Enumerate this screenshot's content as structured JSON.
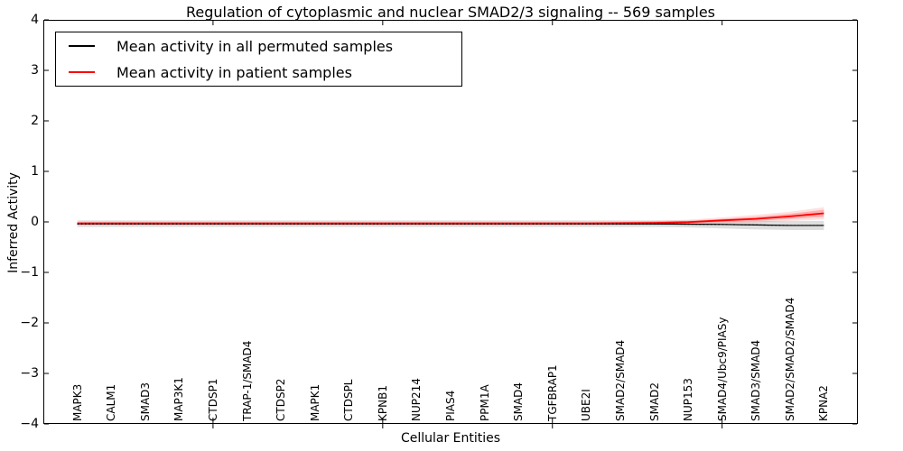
{
  "figure": {
    "title": "Regulation of cytoplasmic and nuclear SMAD2/3 signaling -- 569 samples",
    "xlabel": "Cellular Entities",
    "ylabel": "Inferred Activity"
  },
  "legend": {
    "items": [
      {
        "label": "Mean activity in all permuted samples",
        "color": "#000000"
      },
      {
        "label": "Mean activity in patient samples",
        "color": "#ff0000"
      }
    ]
  },
  "chart_data": {
    "type": "line",
    "title": "Regulation of cytoplasmic and nuclear SMAD2/3 signaling -- 569 samples",
    "xlabel": "Cellular Entities",
    "ylabel": "Inferred Activity",
    "grid": false,
    "legend_position": "upper left",
    "xlim": [
      -1,
      23
    ],
    "ylim": [
      -4,
      4
    ],
    "yticks": [
      4,
      3,
      2,
      1,
      0,
      -1,
      -2,
      -3,
      -4
    ],
    "xtick_marks_at": [
      4,
      9,
      14,
      19
    ],
    "categories": [
      "MAPK3",
      "CALM1",
      "SMAD3",
      "MAP3K1",
      "CTDSP1",
      "TRAP-1/SMAD4",
      "CTDSP2",
      "MAPK1",
      "CTDSPL",
      "KPNB1",
      "NUP214",
      "PIAS4",
      "PPM1A",
      "SMAD4",
      "TGFBRAP1",
      "UBE2I",
      "SMAD2/SMAD4",
      "SMAD2",
      "NUP153",
      "SMAD4/Ubc9/PIASy",
      "SMAD3/SMAD4",
      "SMAD2/SMAD2/SMAD4",
      "KPNA2"
    ],
    "series": [
      {
        "name": "Mean activity in all permuted samples",
        "color": "#000000",
        "linewidth": 1.2,
        "linestyle": "solid-with-dotted-overlay",
        "values": [
          -0.04,
          -0.04,
          -0.04,
          -0.04,
          -0.04,
          -0.04,
          -0.04,
          -0.04,
          -0.04,
          -0.04,
          -0.04,
          -0.04,
          -0.04,
          -0.04,
          -0.04,
          -0.04,
          -0.04,
          -0.04,
          -0.045,
          -0.05,
          -0.06,
          -0.07,
          -0.07
        ],
        "bands": [
          {
            "fill": "rgba(0,0,0,0.13)",
            "upper": [
              0.03,
              0.03,
              0.03,
              0.03,
              0.03,
              0.03,
              0.03,
              0.03,
              0.03,
              0.03,
              0.03,
              0.03,
              0.03,
              0.03,
              0.03,
              0.03,
              0.03,
              0.03,
              0.025,
              0.02,
              0.02,
              0.02,
              0.02
            ],
            "lower": [
              -0.1,
              -0.1,
              -0.1,
              -0.1,
              -0.1,
              -0.1,
              -0.1,
              -0.1,
              -0.1,
              -0.1,
              -0.1,
              -0.1,
              -0.1,
              -0.1,
              -0.1,
              -0.1,
              -0.1,
              -0.1,
              -0.11,
              -0.13,
              -0.15,
              -0.16,
              -0.16
            ]
          }
        ]
      },
      {
        "name": "Mean activity in patient samples",
        "color": "#ff0000",
        "linewidth": 1.8,
        "linestyle": "solid",
        "values": [
          -0.03,
          -0.03,
          -0.03,
          -0.03,
          -0.03,
          -0.03,
          -0.03,
          -0.03,
          -0.03,
          -0.03,
          -0.03,
          -0.03,
          -0.03,
          -0.03,
          -0.03,
          -0.03,
          -0.025,
          -0.02,
          -0.005,
          0.03,
          0.06,
          0.11,
          0.17
        ],
        "bands": [
          {
            "fill": "rgba(255,0,0,0.12)",
            "upper": [
              0.0,
              0.0,
              0.0,
              0.0,
              0.0,
              0.0,
              0.0,
              0.0,
              0.0,
              0.0,
              0.0,
              0.0,
              0.0,
              0.0,
              0.0,
              0.0,
              0.005,
              0.02,
              0.045,
              0.09,
              0.14,
              0.2,
              0.29
            ],
            "lower": [
              -0.06,
              -0.06,
              -0.06,
              -0.06,
              -0.06,
              -0.06,
              -0.06,
              -0.06,
              -0.06,
              -0.06,
              -0.06,
              -0.06,
              -0.06,
              -0.06,
              -0.06,
              -0.06,
              -0.06,
              -0.06,
              -0.055,
              -0.03,
              -0.01,
              0.02,
              0.05
            ]
          },
          {
            "fill": "rgba(255,0,0,0.22)",
            "upper": [
              -0.012,
              -0.012,
              -0.012,
              -0.012,
              -0.012,
              -0.012,
              -0.012,
              -0.012,
              -0.012,
              -0.012,
              -0.012,
              -0.012,
              -0.012,
              -0.012,
              -0.012,
              -0.012,
              -0.005,
              0.005,
              0.02,
              0.06,
              0.1,
              0.16,
              0.24
            ],
            "lower": [
              -0.048,
              -0.048,
              -0.048,
              -0.048,
              -0.048,
              -0.048,
              -0.048,
              -0.048,
              -0.048,
              -0.048,
              -0.048,
              -0.048,
              -0.048,
              -0.048,
              -0.048,
              -0.048,
              -0.045,
              -0.04,
              -0.03,
              0.0,
              0.02,
              0.06,
              0.1
            ]
          }
        ]
      }
    ]
  }
}
